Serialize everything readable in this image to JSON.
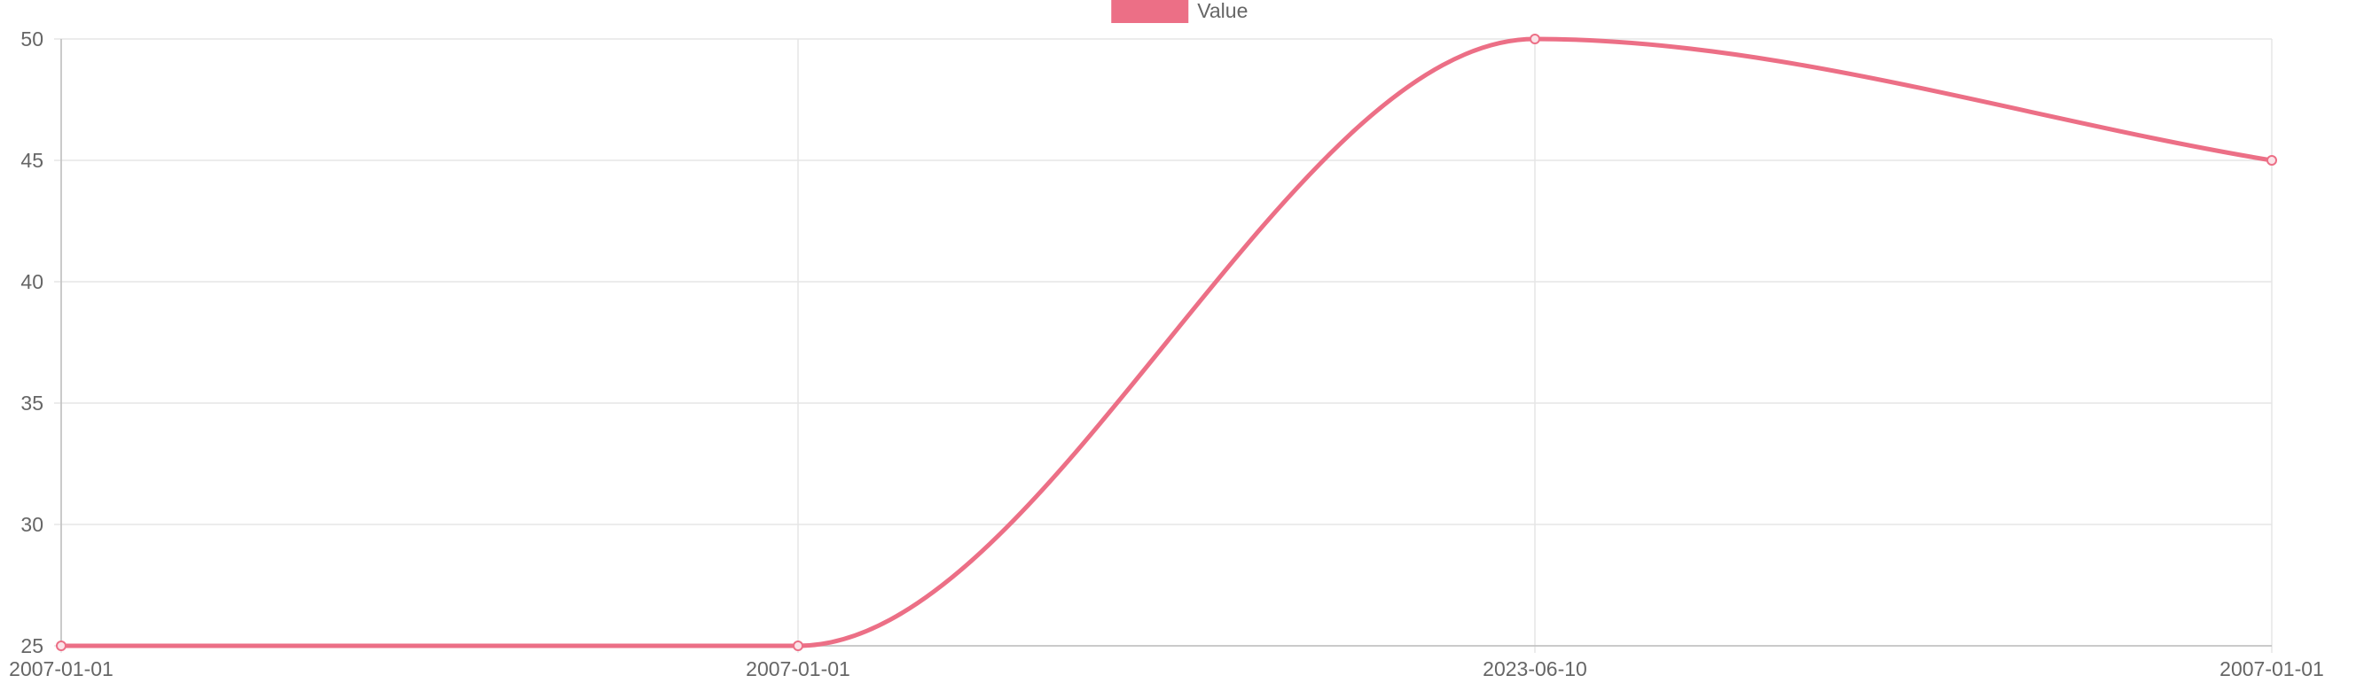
{
  "chart_data": {
    "type": "line",
    "categories": [
      "2007-01-01",
      "2007-01-01",
      "2023-06-10",
      "2007-01-01"
    ],
    "series": [
      {
        "name": "Value",
        "values": [
          25,
          25,
          50,
          45
        ],
        "color": "#ec6f86"
      }
    ],
    "title": "",
    "xlabel": "",
    "ylabel": "",
    "ylim": [
      25,
      50
    ],
    "yticks": [
      25,
      30,
      35,
      40,
      45,
      50
    ],
    "grid": true,
    "legend_position": "top",
    "curve": "smooth",
    "point_style": "hollow-circle"
  },
  "colors": {
    "grid": "#e5e5e5",
    "axis": "#bdbdbd",
    "tick_text": "#666666"
  }
}
